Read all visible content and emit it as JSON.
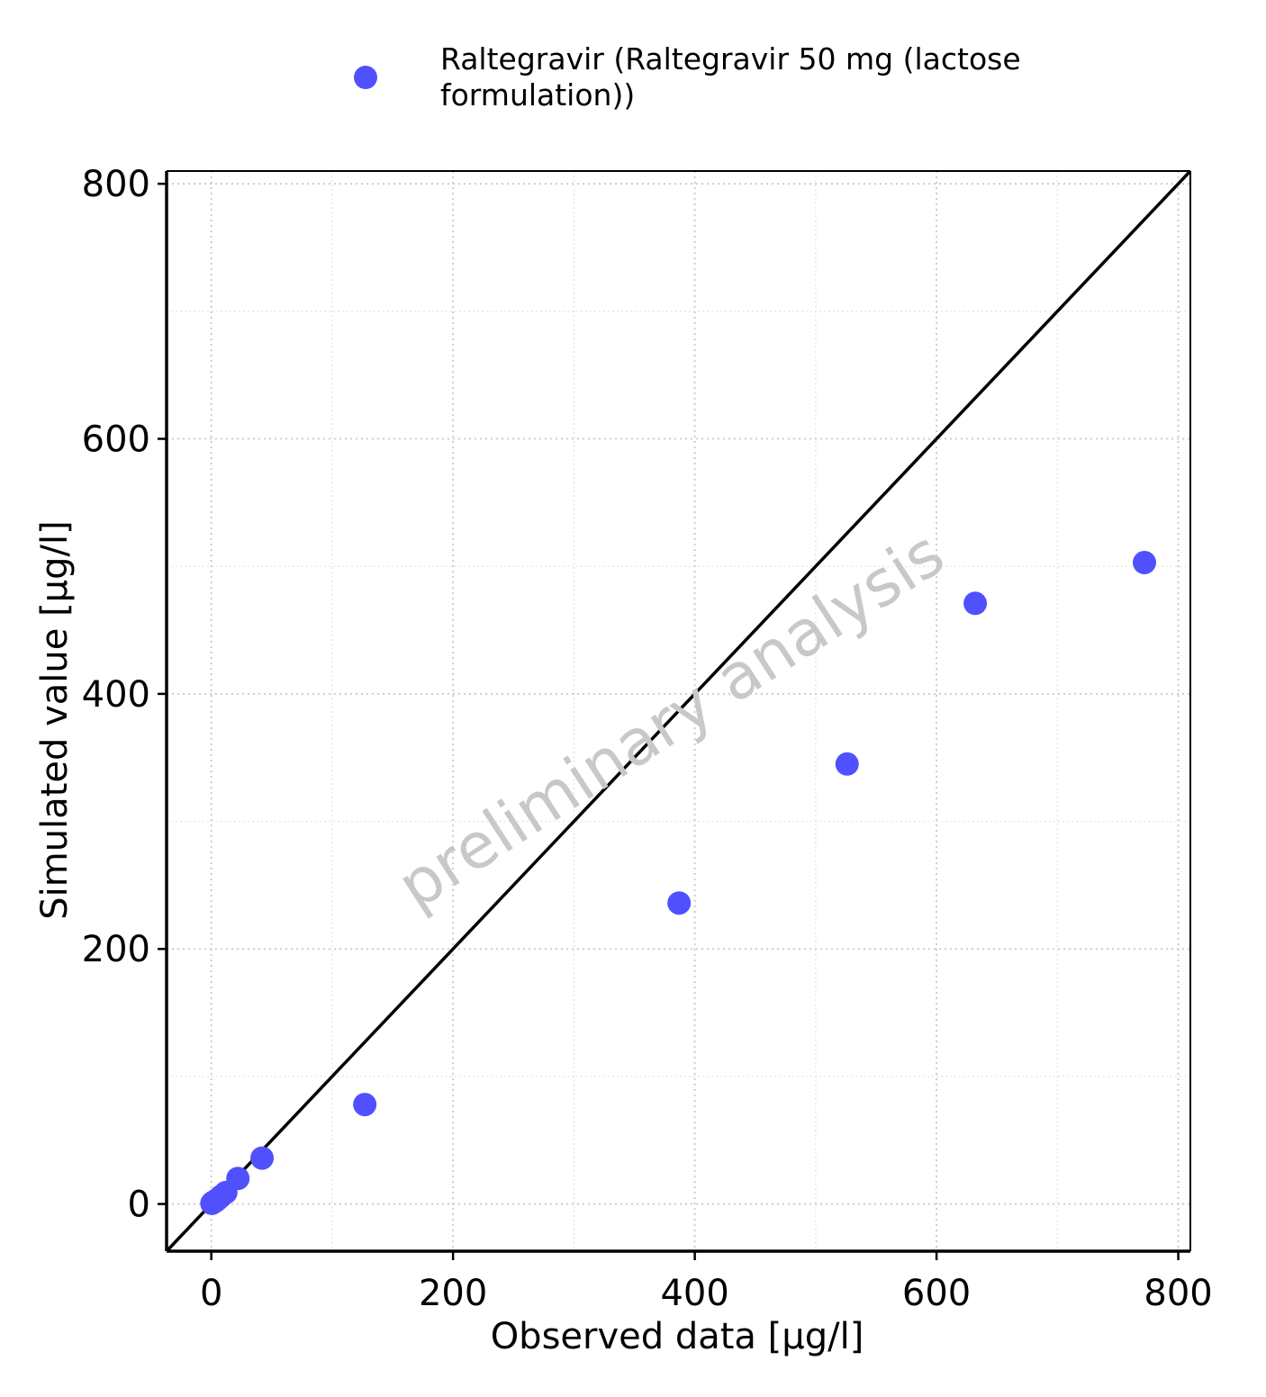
{
  "chart_data": {
    "type": "scatter",
    "title": "",
    "xlabel": "Observed data [µg/l]",
    "ylabel": "Simulated value [µg/l]",
    "xlim": [
      -37,
      810
    ],
    "ylim": [
      -37,
      810
    ],
    "x_ticks": [
      "0",
      "200",
      "400",
      "600",
      "800"
    ],
    "y_ticks": [
      "0",
      "200",
      "400",
      "600",
      "800"
    ],
    "grid": true,
    "identity_line": true,
    "legend_position": "top",
    "watermark": "preliminary analysis",
    "series": [
      {
        "name_line1": "Raltegravir (Raltegravir 50 mg (lactose",
        "name_line2": "formulation))",
        "color": "#5050ff",
        "points": [
          {
            "x": 0.5,
            "y": 0.5
          },
          {
            "x": 1.5,
            "y": 1.5
          },
          {
            "x": 3,
            "y": 2
          },
          {
            "x": 5,
            "y": 3.5
          },
          {
            "x": 8,
            "y": 6
          },
          {
            "x": 12,
            "y": 9
          },
          {
            "x": 22,
            "y": 20
          },
          {
            "x": 42,
            "y": 36
          },
          {
            "x": 127,
            "y": 78
          },
          {
            "x": 387,
            "y": 236
          },
          {
            "x": 526,
            "y": 345
          },
          {
            "x": 632,
            "y": 471
          },
          {
            "x": 772,
            "y": 503
          }
        ]
      }
    ]
  }
}
